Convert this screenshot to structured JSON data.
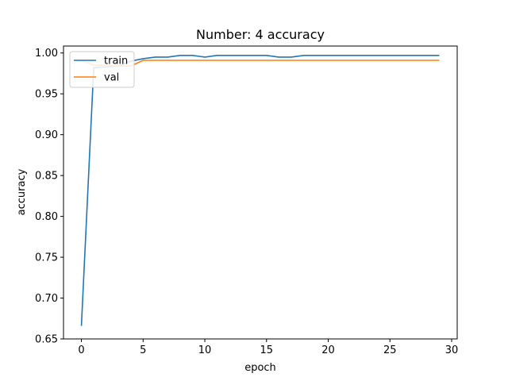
{
  "chart_data": {
    "type": "line",
    "title": "Number: 4 accuracy",
    "xlabel": "epoch",
    "ylabel": "accuracy",
    "xlim": [
      -1.45,
      30.45
    ],
    "ylim": [
      0.65,
      1.0085
    ],
    "xticks": [
      0,
      5,
      10,
      15,
      20,
      25,
      30
    ],
    "yticks": [
      0.65,
      0.7,
      0.75,
      0.8,
      0.85,
      0.9,
      0.95,
      1.0
    ],
    "ytick_labels": [
      "0.65",
      "0.70",
      "0.75",
      "0.80",
      "0.85",
      "0.90",
      "0.95",
      "1.00"
    ],
    "grid": false,
    "legend_position": "upper-left",
    "x": [
      0,
      1,
      2,
      3,
      4,
      5,
      6,
      7,
      8,
      9,
      10,
      11,
      12,
      13,
      14,
      15,
      16,
      17,
      18,
      19,
      20,
      21,
      22,
      23,
      24,
      25,
      26,
      27,
      28,
      29
    ],
    "series": [
      {
        "name": "train",
        "color": "#1f77b4",
        "values": [
          0.666,
          0.982,
          0.983,
          0.984,
          0.99,
          0.993,
          0.995,
          0.995,
          0.997,
          0.997,
          0.995,
          0.997,
          0.997,
          0.997,
          0.997,
          0.997,
          0.995,
          0.995,
          0.997,
          0.997,
          0.997,
          0.997,
          0.997,
          0.997,
          0.997,
          0.997,
          0.997,
          0.997,
          0.997,
          0.997
        ]
      },
      {
        "name": "val",
        "color": "#ff7f0e",
        "values": [
          0.991,
          0.985,
          0.985,
          0.984,
          0.984,
          0.991,
          0.991,
          0.991,
          0.991,
          0.991,
          0.991,
          0.991,
          0.991,
          0.991,
          0.991,
          0.991,
          0.991,
          0.991,
          0.991,
          0.991,
          0.991,
          0.991,
          0.991,
          0.991,
          0.991,
          0.991,
          0.991,
          0.991,
          0.991,
          0.991
        ]
      }
    ]
  }
}
